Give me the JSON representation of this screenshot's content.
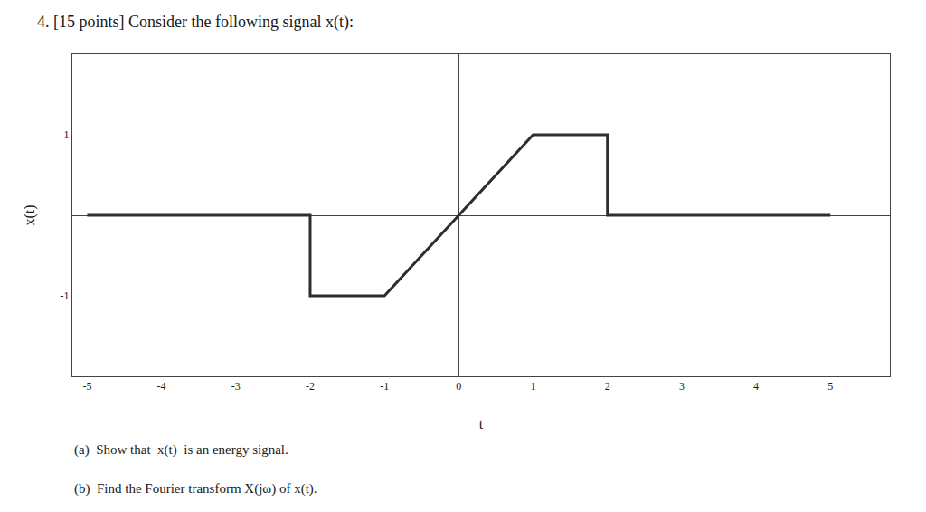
{
  "chart_data": {
    "type": "line",
    "title": "4. [15 points] Consider the following signal x(t):",
    "x_label": "t",
    "y_label": "x(t)",
    "x": [
      -5,
      -2,
      -2,
      -1,
      1,
      1,
      2,
      2,
      5
    ],
    "values": [
      0,
      0,
      -1,
      -1,
      1,
      1,
      1,
      0,
      0
    ],
    "color": "#2d2d2d",
    "xlim": [
      -5.2,
      5.8
    ],
    "ylim": [
      -2.0,
      2.0
    ],
    "xticks": [
      -5,
      -4,
      -3,
      -2,
      -1,
      0,
      1,
      2,
      3,
      4,
      5
    ],
    "yticks": [
      -1,
      1
    ],
    "grid": false,
    "annotations": [
      "(a)  Show that  x(t)  is an energy signal.",
      "(b)  Find the Fourier transform X(jω) of x(t)."
    ]
  }
}
